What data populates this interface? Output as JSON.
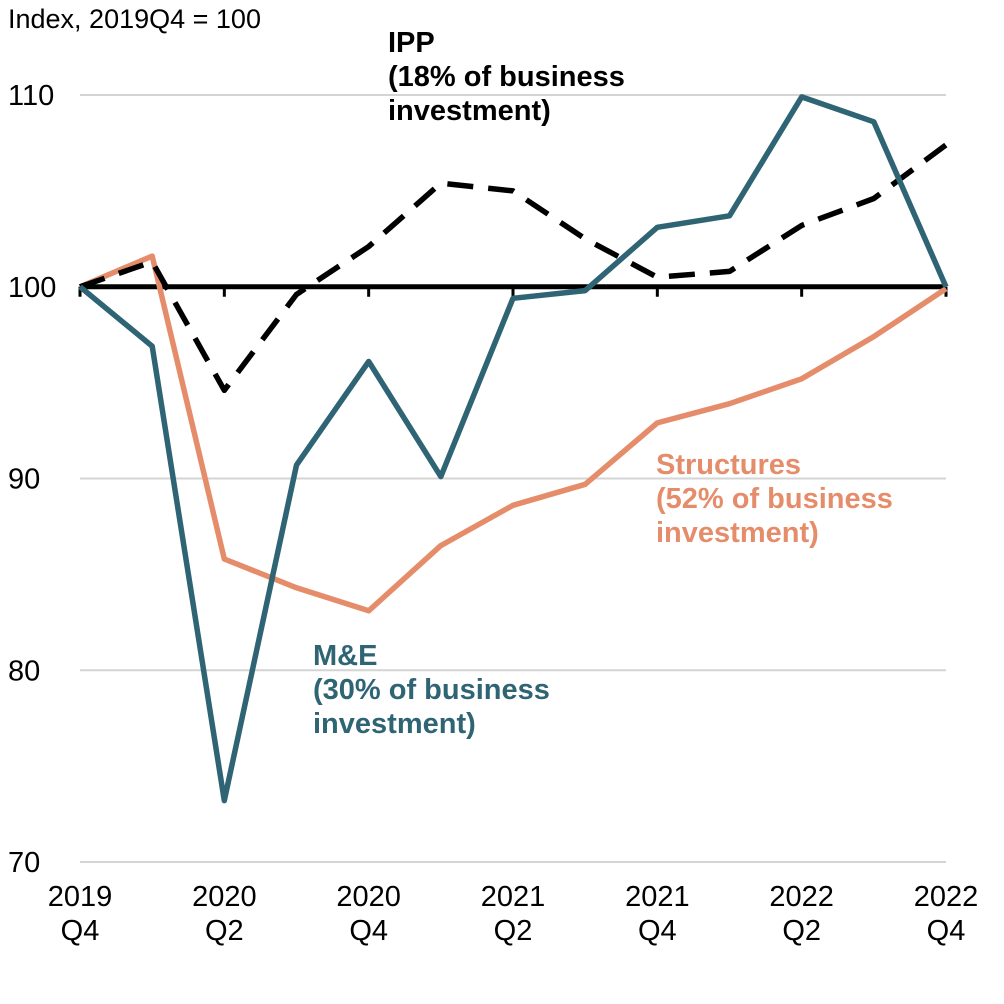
{
  "chart_data": {
    "type": "line",
    "title": "",
    "ylabel": "Index, 2019Q4 = 100",
    "xlabel": "",
    "ylim": [
      70,
      110
    ],
    "yticks": [
      70,
      80,
      90,
      100,
      110
    ],
    "baseline": 100,
    "x": [
      "2019Q4",
      "2020Q1",
      "2020Q2",
      "2020Q3",
      "2020Q4",
      "2021Q1",
      "2021Q2",
      "2021Q3",
      "2021Q4",
      "2022Q1",
      "2022Q2",
      "2022Q3",
      "2022Q4"
    ],
    "xtick_labels": [
      {
        "index": 0,
        "year": "2019",
        "quarter": "Q4"
      },
      {
        "index": 2,
        "year": "2020",
        "quarter": "Q2"
      },
      {
        "index": 4,
        "year": "2020",
        "quarter": "Q4"
      },
      {
        "index": 6,
        "year": "2021",
        "quarter": "Q2"
      },
      {
        "index": 8,
        "year": "2021",
        "quarter": "Q4"
      },
      {
        "index": 10,
        "year": "2022",
        "quarter": "Q2"
      },
      {
        "index": 12,
        "year": "2022",
        "quarter": "Q4"
      }
    ],
    "series": [
      {
        "name": "IPP",
        "label_lines": [
          "IPP",
          "(18% of business",
          "investment)"
        ],
        "color": "#000000",
        "style": "dashed",
        "values": [
          100,
          101.3,
          94.6,
          99.6,
          102.1,
          105.4,
          105.0,
          102.5,
          100.5,
          100.8,
          103.2,
          104.6,
          107.4
        ]
      },
      {
        "name": "M&E",
        "label_lines": [
          "M&E",
          "(30% of business",
          "investment)"
        ],
        "color": "#2f6475",
        "style": "solid",
        "values": [
          100,
          96.9,
          73.2,
          90.7,
          96.1,
          90.1,
          99.4,
          99.8,
          103.1,
          103.7,
          109.9,
          108.6,
          100.0
        ]
      },
      {
        "name": "Structures",
        "label_lines": [
          "Structures",
          "(52% of business",
          "investment)"
        ],
        "color": "#e58d6a",
        "style": "solid",
        "values": [
          100,
          101.6,
          85.8,
          84.3,
          83.1,
          86.5,
          88.6,
          89.7,
          92.9,
          93.9,
          95.2,
          97.4,
          99.9
        ]
      }
    ]
  }
}
